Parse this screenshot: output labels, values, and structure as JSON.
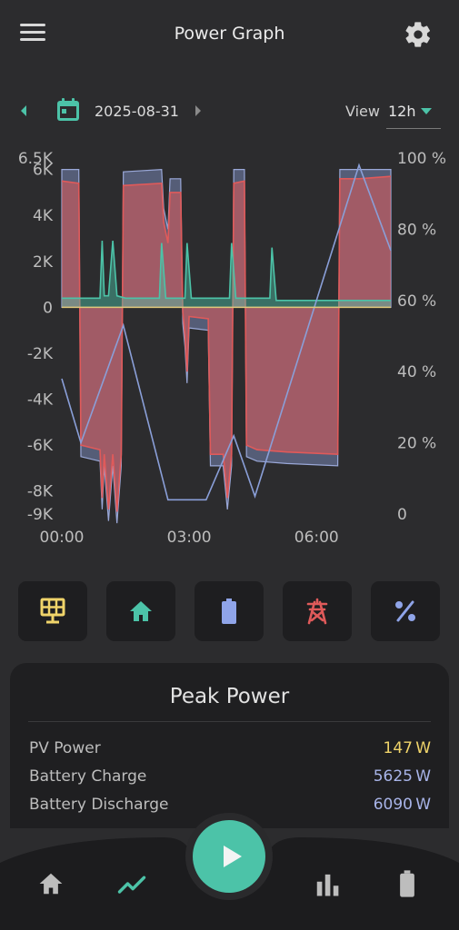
{
  "header": {
    "title": "Power Graph",
    "menu_icon": "menu-icon",
    "settings_icon": "gear-icon"
  },
  "datebar": {
    "date": "2025-08-31",
    "view_label": "View",
    "view_value": "12h",
    "accent": "#4cc3a8"
  },
  "chart_data": {
    "type": "area",
    "x_ticks": [
      "00:00",
      "03:00",
      "06:00"
    ],
    "y_left_ticks": [
      "6.5K",
      "6K",
      "4K",
      "2K",
      "0",
      "-2K",
      "-4K",
      "-6K",
      "-8K",
      "-9K"
    ],
    "y_right_ticks": [
      "100 %",
      "80 %",
      "60 %",
      "40 %",
      "20 %",
      "0"
    ],
    "y_left_range": [
      -9000,
      6500
    ],
    "y_right_range": [
      0,
      100
    ],
    "x_range_hours": [
      0,
      7.75
    ],
    "series": [
      {
        "color": "#e05a5a",
        "axis": "left",
        "points": [
          [
            0,
            5500
          ],
          [
            0.4,
            5400
          ],
          [
            0.45,
            -6000
          ],
          [
            0.9,
            -6200
          ],
          [
            0.95,
            -8300
          ],
          [
            1.0,
            -6400
          ],
          [
            1.1,
            -8800
          ],
          [
            1.2,
            -6400
          ],
          [
            1.3,
            -8900
          ],
          [
            1.4,
            -6400
          ],
          [
            1.45,
            5300
          ],
          [
            2.35,
            5400
          ],
          [
            2.4,
            3700
          ],
          [
            2.5,
            2800
          ],
          [
            2.55,
            5000
          ],
          [
            2.8,
            5000
          ],
          [
            2.85,
            -200
          ],
          [
            2.9,
            -1200
          ],
          [
            2.95,
            -2800
          ],
          [
            3.0,
            -400
          ],
          [
            3.45,
            -500
          ],
          [
            3.5,
            -6400
          ],
          [
            3.8,
            -6400
          ],
          [
            3.9,
            -8300
          ],
          [
            4.0,
            -6400
          ],
          [
            4.05,
            5400
          ],
          [
            4.3,
            5500
          ],
          [
            4.35,
            -6000
          ],
          [
            4.6,
            -6200
          ],
          [
            5.3,
            -6300
          ],
          [
            6.5,
            -6400
          ],
          [
            6.55,
            5600
          ],
          [
            7.0,
            5600
          ],
          [
            7.75,
            5700
          ]
        ]
      },
      {
        "color": "#4cc3a8",
        "axis": "left",
        "points": [
          [
            0,
            400
          ],
          [
            0.9,
            400
          ],
          [
            0.95,
            2900
          ],
          [
            1.0,
            500
          ],
          [
            1.1,
            500
          ],
          [
            1.2,
            2900
          ],
          [
            1.3,
            500
          ],
          [
            1.5,
            400
          ],
          [
            2.3,
            400
          ],
          [
            2.35,
            2800
          ],
          [
            2.45,
            400
          ],
          [
            2.9,
            400
          ],
          [
            2.95,
            2800
          ],
          [
            3.05,
            400
          ],
          [
            3.95,
            400
          ],
          [
            4.0,
            2800
          ],
          [
            4.1,
            400
          ],
          [
            4.9,
            400
          ],
          [
            4.95,
            2600
          ],
          [
            5.05,
            300
          ],
          [
            7.75,
            300
          ]
        ]
      },
      {
        "color": "#8a9fd8",
        "axis": "right",
        "points": [
          [
            0,
            38
          ],
          [
            0.45,
            20
          ],
          [
            1.45,
            53
          ],
          [
            2.5,
            4
          ],
          [
            3.4,
            4
          ],
          [
            4.05,
            22
          ],
          [
            4.55,
            5
          ],
          [
            7.0,
            98
          ],
          [
            7.75,
            74
          ]
        ]
      }
    ]
  },
  "tiles": [
    {
      "name": "pv",
      "icon": "solar-panel-icon",
      "color": "#f0d46a"
    },
    {
      "name": "home",
      "icon": "home-icon",
      "color": "#4cc3a8"
    },
    {
      "name": "battery",
      "icon": "battery-icon",
      "color": "#8fa4e8"
    },
    {
      "name": "grid",
      "icon": "grid-tower-icon",
      "color": "#e05a5a"
    },
    {
      "name": "percent",
      "icon": "percent-icon",
      "color": "#8fa4e8"
    }
  ],
  "peak_power": {
    "title": "Peak Power",
    "rows": [
      {
        "label": "PV Power",
        "value": "147",
        "unit": "W",
        "color": "#f0d46a"
      },
      {
        "label": "Battery Charge",
        "value": "5625",
        "unit": "W",
        "color": "#a8b4e8"
      },
      {
        "label": "Battery Discharge",
        "value": "6090",
        "unit": "W",
        "color": "#a8b4e8"
      }
    ]
  },
  "bottom_nav": {
    "fab_icon": "play-icon",
    "items": [
      "home-icon",
      "trend-icon",
      "bar-chart-icon",
      "battery-icon"
    ],
    "active": "trend-icon"
  }
}
